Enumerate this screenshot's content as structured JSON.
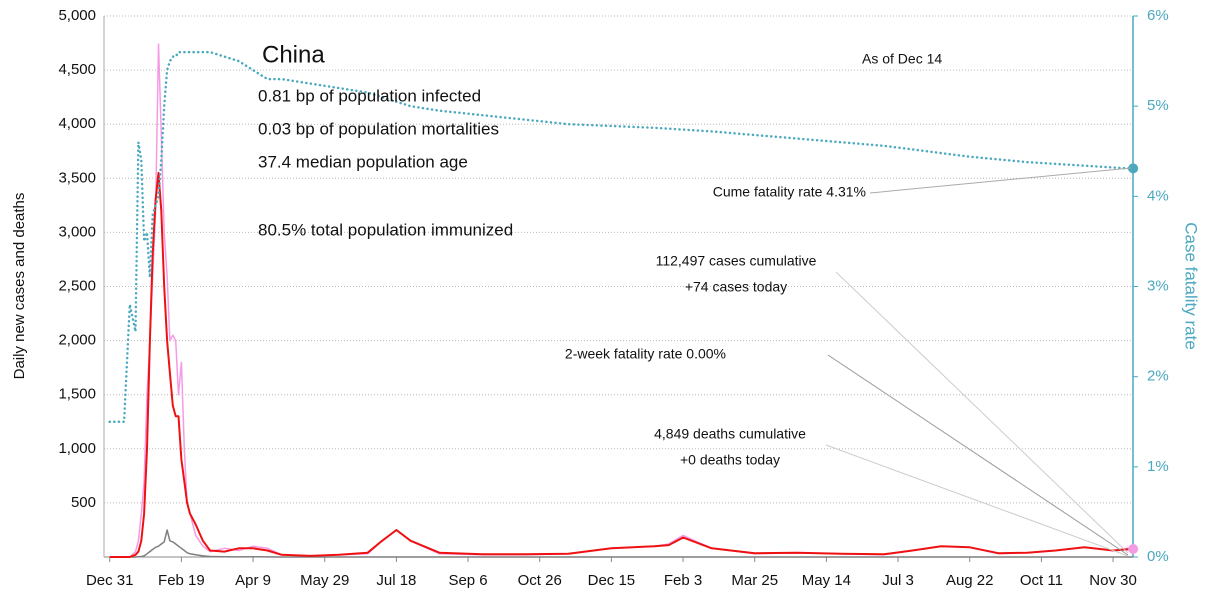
{
  "chart_data": {
    "type": "line",
    "title": "China",
    "date_note": "As of Dec 14",
    "stats": [
      "0.81 bp of population infected",
      "0.03 bp of population mortalities",
      "37.4 median population age",
      "80.5% total population immunized"
    ],
    "y_label": "Daily new cases and deaths",
    "y2_label": "Case fatality rate",
    "grid": true,
    "xlim": [
      -4,
      716
    ],
    "xticks": [
      {
        "value": 0,
        "label": "Dec 31"
      },
      {
        "value": 50,
        "label": "Feb 19"
      },
      {
        "value": 100,
        "label": "Apr 9"
      },
      {
        "value": 150,
        "label": "May 29"
      },
      {
        "value": 200,
        "label": "Jul 18"
      },
      {
        "value": 250,
        "label": "Sep 6"
      },
      {
        "value": 300,
        "label": "Oct 26"
      },
      {
        "value": 350,
        "label": "Dec 15"
      },
      {
        "value": 400,
        "label": "Feb 3"
      },
      {
        "value": 450,
        "label": "Mar 25"
      },
      {
        "value": 500,
        "label": "May 14"
      },
      {
        "value": 550,
        "label": "Jul 3"
      },
      {
        "value": 600,
        "label": "Aug 22"
      },
      {
        "value": 650,
        "label": "Oct 11"
      },
      {
        "value": 700,
        "label": "Nov 30"
      }
    ],
    "ylim": [
      0,
      5000
    ],
    "yticks": [
      {
        "value": 500,
        "label": "500"
      },
      {
        "value": 1000,
        "label": "1,000"
      },
      {
        "value": 1500,
        "label": "1,500"
      },
      {
        "value": 2000,
        "label": "2,000"
      },
      {
        "value": 2500,
        "label": "2,500"
      },
      {
        "value": 3000,
        "label": "3,000"
      },
      {
        "value": 3500,
        "label": "3,500"
      },
      {
        "value": 4000,
        "label": "4,000"
      },
      {
        "value": 4500,
        "label": "4,500"
      },
      {
        "value": 5000,
        "label": "5,000"
      }
    ],
    "y2lim": [
      0,
      6
    ],
    "y2ticks": [
      {
        "value": 0,
        "label": "0%"
      },
      {
        "value": 1,
        "label": "1%"
      },
      {
        "value": 2,
        "label": "2%"
      },
      {
        "value": 3,
        "label": "3%"
      },
      {
        "value": 4,
        "label": "4%"
      },
      {
        "value": 5,
        "label": "5%"
      },
      {
        "value": 6,
        "label": "6%"
      }
    ],
    "x": [
      0,
      10,
      14,
      18,
      20,
      22,
      24,
      26,
      28,
      30,
      32,
      34,
      36,
      38,
      40,
      42,
      44,
      46,
      48,
      50,
      52,
      54,
      56,
      60,
      65,
      70,
      80,
      90,
      100,
      110,
      120,
      140,
      160,
      180,
      190,
      200,
      210,
      230,
      260,
      290,
      320,
      350,
      380,
      390,
      400,
      420,
      450,
      480,
      510,
      540,
      560,
      580,
      600,
      620,
      640,
      660,
      680,
      700,
      710,
      714
    ],
    "series": [
      {
        "color": "#f59be6",
        "width": 1.5,
        "values": [
          0,
          0,
          0,
          50,
          150,
          400,
          700,
          1500,
          2000,
          2600,
          3200,
          4740,
          3900,
          3000,
          2600,
          2000,
          2050,
          2000,
          1500,
          1800,
          1000,
          500,
          400,
          200,
          100,
          50,
          80,
          60,
          100,
          80,
          20,
          10,
          20,
          30,
          150,
          250,
          150,
          30,
          20,
          20,
          30,
          80,
          100,
          120,
          200,
          80,
          30,
          40,
          30,
          20,
          60,
          100,
          90,
          30,
          40,
          60,
          90,
          60,
          80,
          74
        ]
      },
      {
        "color": "#7f7f7f",
        "width": 1.5,
        "values": [
          0,
          0,
          0,
          0,
          2,
          5,
          10,
          30,
          50,
          70,
          90,
          100,
          120,
          140,
          250,
          150,
          140,
          120,
          100,
          80,
          60,
          40,
          30,
          20,
          10,
          5,
          2,
          1,
          2,
          1,
          0,
          0,
          0,
          0,
          0,
          0,
          0,
          0,
          0,
          0,
          0,
          0,
          0,
          0,
          0,
          0,
          0,
          0,
          0,
          0,
          0,
          0,
          0,
          0,
          0,
          0,
          0,
          0,
          0,
          0
        ]
      },
      {
        "color": "#ee1111",
        "width": 2,
        "values": [
          0,
          0,
          0,
          20,
          50,
          150,
          400,
          1000,
          2000,
          2800,
          3300,
          3550,
          3200,
          2500,
          2000,
          1700,
          1400,
          1300,
          1300,
          900,
          700,
          500,
          400,
          300,
          150,
          60,
          50,
          80,
          80,
          60,
          20,
          10,
          20,
          40,
          150,
          250,
          150,
          40,
          25,
          25,
          30,
          80,
          100,
          110,
          180,
          80,
          35,
          40,
          30,
          25,
          60,
          100,
          90,
          35,
          40,
          60,
          90,
          60,
          70,
          74
        ]
      },
      {
        "color": "#4aa8bf",
        "width": 2.5,
        "dotted": true,
        "axis": "y2",
        "values": [
          1.5,
          1.5,
          2.8,
          2.5,
          4.6,
          4.4,
          3.5,
          3.6,
          3.1,
          3.8,
          3.9,
          4.0,
          4.4,
          5.0,
          5.4,
          5.5,
          5.55,
          5.55,
          5.6,
          5.6,
          5.6,
          5.6,
          5.6,
          5.6,
          5.6,
          5.6,
          5.55,
          5.5,
          5.4,
          5.3,
          5.3,
          5.25,
          5.2,
          5.15,
          5.1,
          5.05,
          5.0,
          4.95,
          4.9,
          4.85,
          4.8,
          4.78,
          4.76,
          4.75,
          4.74,
          4.72,
          4.68,
          4.64,
          4.6,
          4.56,
          4.52,
          4.48,
          4.44,
          4.41,
          4.38,
          4.36,
          4.34,
          4.32,
          4.31,
          4.31
        ]
      }
    ],
    "annotations": [
      {
        "lines": [
          "Cume fatality rate 4.31%"
        ]
      },
      {
        "lines": [
          "112,497 cases cumulative",
          "+74 cases today"
        ]
      },
      {
        "lines": [
          "2-week fatality rate 0.00%"
        ]
      },
      {
        "lines": [
          "4,849 deaths cumulative",
          "+0 deaths today"
        ]
      }
    ]
  }
}
